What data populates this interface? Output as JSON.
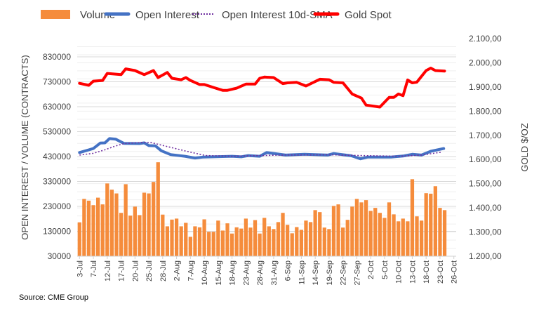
{
  "chart_data": {
    "type": "bar+line",
    "source": "Source: CME Group",
    "ylabel_left": "OPEN INTEREST / VOLUME (CONTRACTS)",
    "ylabel_right": "GOLD $/OZ",
    "left_ticks": [
      "30000",
      "130000",
      "230000",
      "330000",
      "430000",
      "530000",
      "630000",
      "730000",
      "830000"
    ],
    "left_range": [
      30000,
      830000
    ],
    "right_ticks": [
      "1.200,00",
      "1.300,00",
      "1.400,00",
      "1.500,00",
      "1.600,00",
      "1.700,00",
      "1.800,00",
      "1.900,00",
      "2.000,00",
      "2.100,00"
    ],
    "right_range": [
      1200,
      2100
    ],
    "slot_count": 82,
    "x_labels": [
      "3-Jul",
      "7-Jul",
      "12-Jul",
      "17-Jul",
      "20-Jul",
      "25-Jul",
      "28-Jul",
      "2-Aug",
      "7-Aug",
      "10-Aug",
      "15-Aug",
      "18-Aug",
      "23-Aug",
      "28-Aug",
      "31-Aug",
      "6-Sep",
      "11-Sep",
      "14-Sep",
      "19-Sep",
      "22-Sep",
      "27-Sep",
      "2-Oct",
      "5-Oct",
      "10-Oct",
      "13-Oct",
      "18-Oct",
      "23-Oct",
      "26-Oct"
    ],
    "x_label_every": 3,
    "legend": {
      "volume": "Volume",
      "open_interest": "Open Interest",
      "sma": "Open Interest 10d-SMA",
      "gold": "Gold Spot"
    },
    "colors": {
      "volume": "#F58C3C",
      "open_interest": "#4472C4",
      "sma": "#7030A0",
      "gold": "#FF0000"
    },
    "volume": [
      166000,
      260000,
      253000,
      235000,
      265000,
      238000,
      322000,
      297000,
      282000,
      204000,
      319000,
      193000,
      229000,
      195000,
      285000,
      282000,
      328000,
      407000,
      197000,
      150000,
      177000,
      181000,
      150000,
      164000,
      108000,
      150000,
      146000,
      178000,
      128000,
      128000,
      173000,
      133000,
      162000,
      121000,
      146000,
      141000,
      181000,
      145000,
      175000,
      121000,
      184000,
      150000,
      139000,
      167000,
      204000,
      156000,
      122000,
      147000,
      136000,
      173000,
      167000,
      215000,
      207000,
      145000,
      139000,
      232000,
      238000,
      145000,
      176000,
      229000,
      260000,
      246000,
      255000,
      212000,
      224000,
      204000,
      184000,
      246000,
      198000,
      170000,
      181000,
      170000,
      339000,
      190000,
      173000,
      283000,
      281000,
      311000,
      224000,
      215000
    ],
    "open_interest": [
      [
        0,
        446000
      ],
      [
        3,
        462000
      ],
      [
        4.5,
        484000
      ],
      [
        5.5,
        485000
      ],
      [
        6.5,
        502000
      ],
      [
        7.8,
        500000
      ],
      [
        9.6,
        483000
      ],
      [
        13,
        482000
      ],
      [
        14,
        485000
      ],
      [
        15,
        474000
      ],
      [
        16.4,
        473000
      ],
      [
        17.7,
        453000
      ],
      [
        19.7,
        438000
      ],
      [
        22.8,
        431000
      ],
      [
        25,
        424000
      ],
      [
        26.8,
        428000
      ],
      [
        33,
        431000
      ],
      [
        35,
        429000
      ],
      [
        36.5,
        434000
      ],
      [
        39,
        431000
      ],
      [
        40.5,
        446000
      ],
      [
        44.6,
        436000
      ],
      [
        48.7,
        439000
      ],
      [
        53.7,
        436000
      ],
      [
        55,
        442000
      ],
      [
        58.8,
        433000
      ],
      [
        60.8,
        421000
      ],
      [
        62.4,
        428000
      ],
      [
        67.4,
        428000
      ],
      [
        70,
        432000
      ],
      [
        72,
        439000
      ],
      [
        74,
        436000
      ],
      [
        76,
        451000
      ],
      [
        78.8,
        462000
      ]
    ],
    "sma": [
      [
        0,
        436000
      ],
      [
        3,
        443000
      ],
      [
        5.5,
        457000
      ],
      [
        7.6,
        471000
      ],
      [
        9.6,
        482000
      ],
      [
        14,
        487000
      ],
      [
        15.5,
        486000
      ],
      [
        19.7,
        467000
      ],
      [
        23.9,
        448000
      ],
      [
        27.3,
        434000
      ],
      [
        33,
        431000
      ],
      [
        39,
        434000
      ],
      [
        44,
        436000
      ],
      [
        54,
        437000
      ],
      [
        61,
        434000
      ],
      [
        69,
        431000
      ],
      [
        74,
        436000
      ],
      [
        78.5,
        448000
      ]
    ],
    "gold": [
      [
        0,
        1915
      ],
      [
        2,
        1907
      ],
      [
        3,
        1924
      ],
      [
        5,
        1927
      ],
      [
        6,
        1956
      ],
      [
        9,
        1951
      ],
      [
        10,
        1975
      ],
      [
        12,
        1968
      ],
      [
        14,
        1951
      ],
      [
        16,
        1968
      ],
      [
        17,
        1939
      ],
      [
        19,
        1960
      ],
      [
        20,
        1936
      ],
      [
        22,
        1930
      ],
      [
        23,
        1939
      ],
      [
        24,
        1927
      ],
      [
        26,
        1910
      ],
      [
        27,
        1910
      ],
      [
        29,
        1898
      ],
      [
        31,
        1886
      ],
      [
        32,
        1886
      ],
      [
        34,
        1895
      ],
      [
        36,
        1912
      ],
      [
        38,
        1912
      ],
      [
        39,
        1936
      ],
      [
        40,
        1941
      ],
      [
        42,
        1939
      ],
      [
        44,
        1914
      ],
      [
        45,
        1917
      ],
      [
        47,
        1919
      ],
      [
        49,
        1904
      ],
      [
        52,
        1932
      ],
      [
        54,
        1930
      ],
      [
        55,
        1919
      ],
      [
        57,
        1917
      ],
      [
        59,
        1871
      ],
      [
        61,
        1854
      ],
      [
        62,
        1825
      ],
      [
        65,
        1817
      ],
      [
        67,
        1857
      ],
      [
        68,
        1857
      ],
      [
        69,
        1871
      ],
      [
        70,
        1864
      ],
      [
        71,
        1929
      ],
      [
        72,
        1917
      ],
      [
        73,
        1920
      ],
      [
        75,
        1968
      ],
      [
        76,
        1978
      ],
      [
        77,
        1968
      ],
      [
        79,
        1966
      ]
    ]
  }
}
